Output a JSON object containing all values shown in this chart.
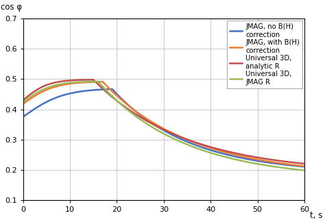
{
  "ylabel": "cos φ",
  "xlabel": "t, s",
  "xlim": [
    0,
    60
  ],
  "ylim": [
    0.1,
    0.7
  ],
  "yticks": [
    0.1,
    0.2,
    0.3,
    0.4,
    0.5,
    0.6,
    0.7
  ],
  "xticks": [
    0,
    10,
    20,
    30,
    40,
    50,
    60
  ],
  "lines": [
    {
      "label": "JMAG, no B(H)\ncorrection",
      "color": "#4472C4",
      "linewidth": 1.8,
      "start_y": 0.375,
      "peak_x": 19,
      "peak_y": 0.467,
      "end_y": 0.21,
      "rise_k": 2.2,
      "decay_k": 2.5
    },
    {
      "label": "JMAG, with B(H)\ncorrection",
      "color": "#ED7D31",
      "linewidth": 1.8,
      "start_y": 0.418,
      "peak_x": 17,
      "peak_y": 0.491,
      "end_y": 0.212,
      "rise_k": 2.5,
      "decay_k": 2.3
    },
    {
      "label": "Universal 3D,\nanalytic R",
      "color": "#C0504D",
      "linewidth": 1.8,
      "start_y": 0.43,
      "peak_x": 15,
      "peak_y": 0.498,
      "end_y": 0.22,
      "rise_k": 2.8,
      "decay_k": 2.3
    },
    {
      "label": "Universal 3D,\nJMAG R",
      "color": "#9BBB59",
      "linewidth": 1.8,
      "start_y": 0.424,
      "peak_x": 16,
      "peak_y": 0.492,
      "end_y": 0.198,
      "rise_k": 2.6,
      "decay_k": 2.4
    }
  ],
  "background_color": "#ffffff",
  "grid_color": "#b0b0b0",
  "legend_fontsize": 7.2,
  "axis_label_fontsize": 8.5,
  "tick_fontsize": 8.0,
  "figsize": [
    4.74,
    3.24
  ],
  "dpi": 100
}
